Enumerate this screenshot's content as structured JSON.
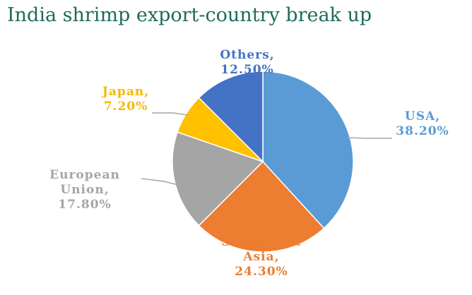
{
  "chart_data": {
    "type": "pie",
    "title": "India shrimp export-country break up",
    "slices": [
      {
        "label": "USA",
        "value": 38.2,
        "value_text": "38.20%",
        "color": "#5b9bd5",
        "label_color": "#5b9bd5"
      },
      {
        "label": "South East Asia",
        "value": 24.3,
        "value_text": "24.30%",
        "color": "#ed7d31",
        "label_color": "#ed7d31"
      },
      {
        "label": "European Union",
        "value": 17.8,
        "value_text": "17.80%",
        "color": "#a5a5a5",
        "label_color": "#a5a5a5"
      },
      {
        "label": "Japan",
        "value": 7.2,
        "value_text": "7.20%",
        "color": "#ffc000",
        "label_color": "#f5b800"
      },
      {
        "label": "Others",
        "value": 12.5,
        "value_text": "12.50%",
        "color": "#4472c4",
        "label_color": "#4472c4"
      }
    ],
    "start_angle": "12 o'clock",
    "direction": "clockwise",
    "legend": "none"
  }
}
